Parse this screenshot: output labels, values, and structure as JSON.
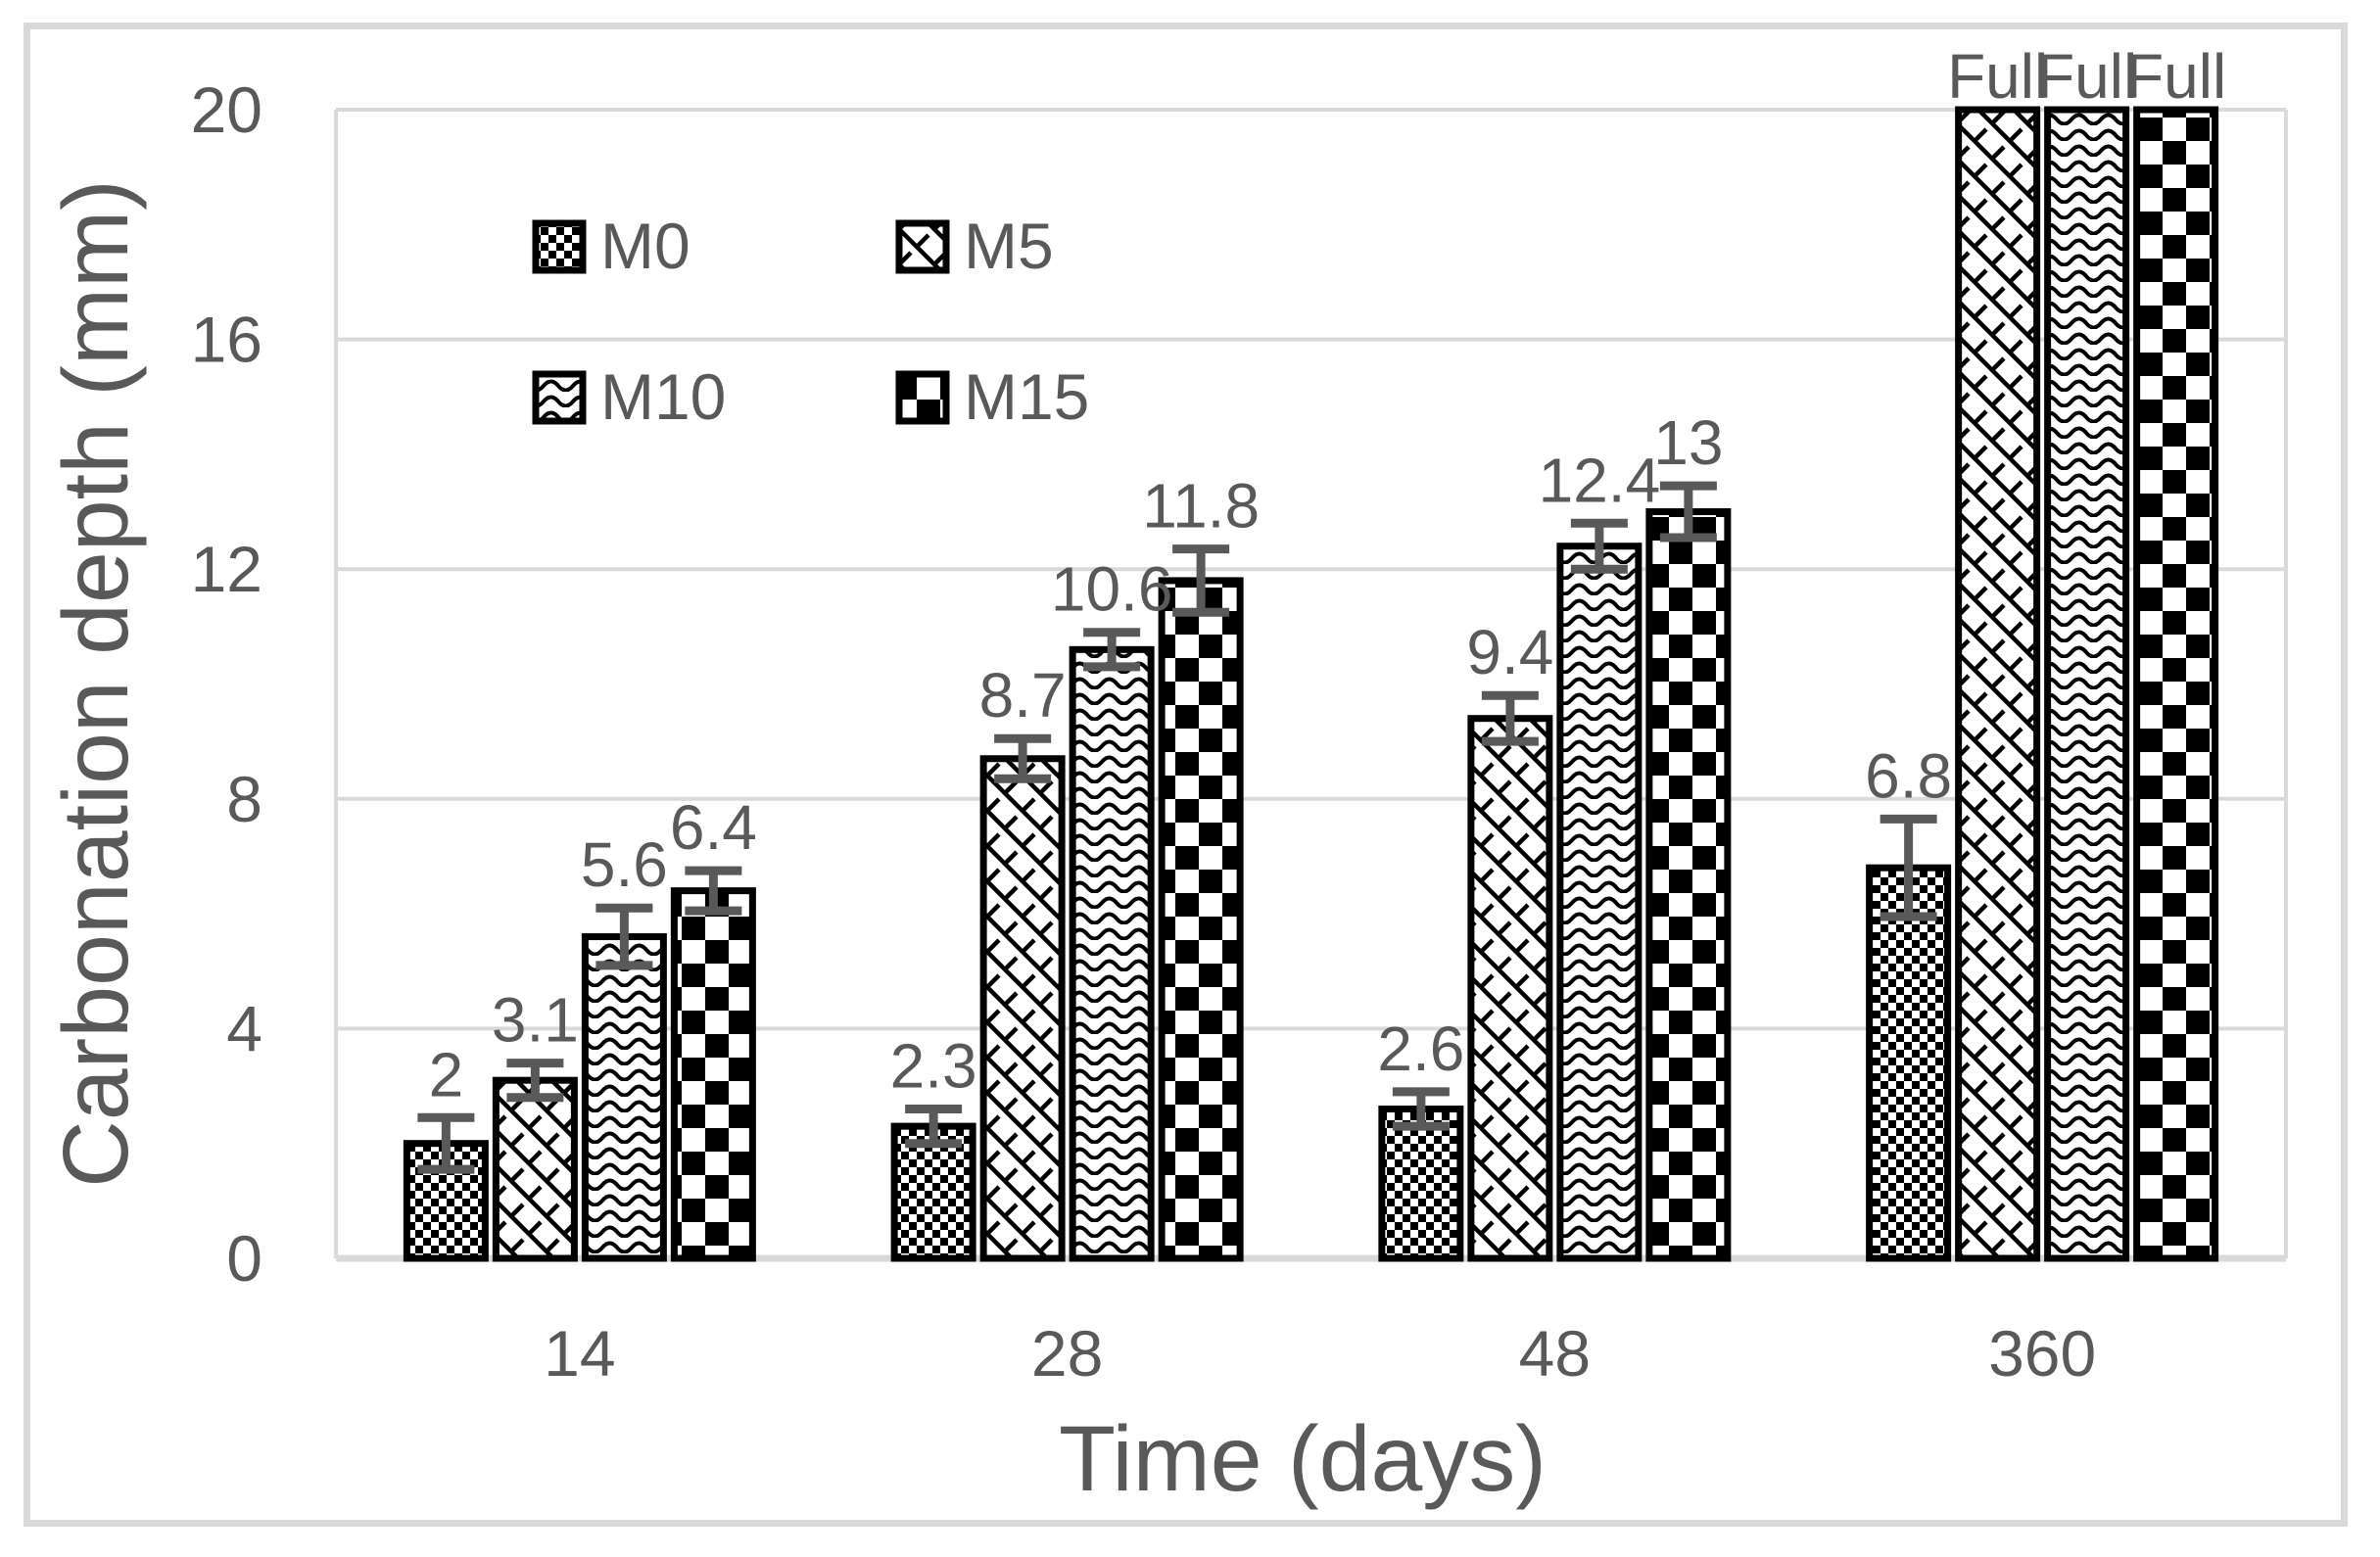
{
  "chart_data": {
    "type": "bar",
    "title": "",
    "xlabel": "Time (days)",
    "ylabel": "Carbonation depth (mm)",
    "ylim": [
      0,
      20
    ],
    "yticks": [
      0,
      4,
      8,
      12,
      16,
      20
    ],
    "grid": "horizontal",
    "legend_position": "inside-top-left",
    "categories": [
      "14",
      "28",
      "48",
      "360"
    ],
    "series": [
      {
        "name": "M0",
        "pattern": "small-checkerboard",
        "values": [
          2,
          2.3,
          2.6,
          6.8
        ],
        "errors": [
          0.45,
          0.3,
          0.3,
          0.85
        ],
        "labels": [
          "2",
          "2.3",
          "2.6",
          "6.8"
        ]
      },
      {
        "name": "M5",
        "pattern": "diagonal-lattice",
        "values": [
          3.1,
          8.7,
          9.4,
          20
        ],
        "errors": [
          0.3,
          0.35,
          0.4,
          0
        ],
        "labels": [
          "3.1",
          "8.7",
          "9.4",
          "Full"
        ]
      },
      {
        "name": "M10",
        "pattern": "wave",
        "values": [
          5.6,
          10.6,
          12.4,
          20
        ],
        "errors": [
          0.5,
          0.3,
          0.4,
          0
        ],
        "labels": [
          "5.6",
          "10.6",
          "12.4",
          "Full"
        ]
      },
      {
        "name": "M15",
        "pattern": "large-checkerboard",
        "values": [
          6.4,
          11.8,
          13,
          20
        ],
        "errors": [
          0.35,
          0.55,
          0.45,
          0
        ],
        "labels": [
          "6.4",
          "11.8",
          "13",
          "Full"
        ]
      }
    ]
  },
  "colors": {
    "text": "#595959",
    "gridline": "#d9d9d9",
    "axis_line": "#d9d9d9",
    "bar_outline": "#000000",
    "error_bar": "#595959",
    "frame": "#d9d9d9",
    "background": "#ffffff"
  }
}
